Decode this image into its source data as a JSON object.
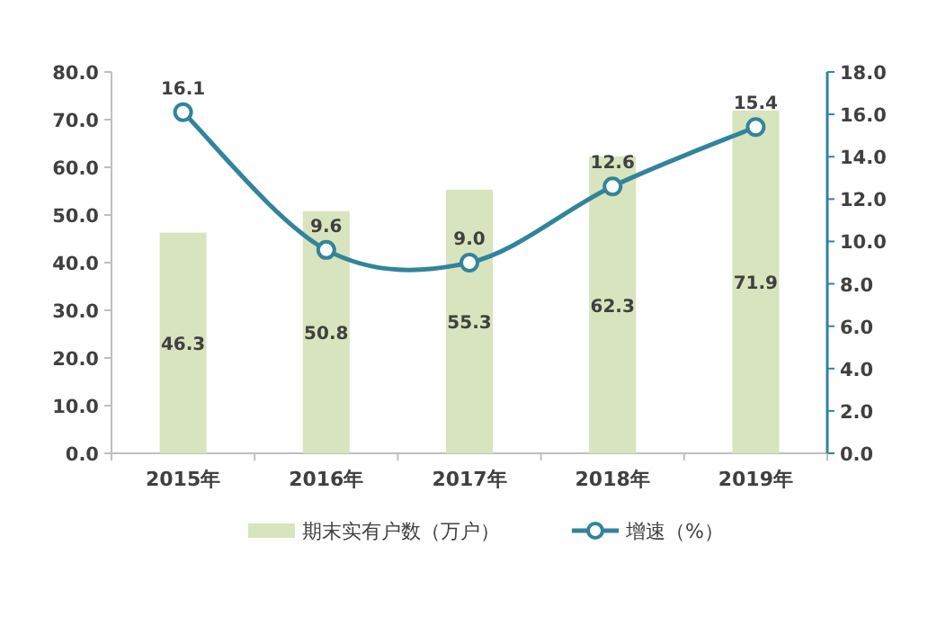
{
  "chart_data": {
    "type": "bar",
    "categories": [
      "2015年",
      "2016年",
      "2017年",
      "2018年",
      "2019年"
    ],
    "series": [
      {
        "name": "期末实有户数（万户）",
        "color": "#d7e4bd",
        "values": [
          46.3,
          50.8,
          55.3,
          62.3,
          71.9
        ],
        "value_labels": [
          "46.3",
          "50.8",
          "55.3",
          "62.3",
          "71.9"
        ]
      },
      {
        "name": "增速（%）",
        "type": "line",
        "axis": "y2",
        "color": "#31849b",
        "values": [
          16.1,
          9.6,
          9.0,
          12.6,
          15.4
        ],
        "value_labels": [
          "16.1",
          "9.6",
          "9.0",
          "12.6",
          "15.4"
        ]
      }
    ],
    "ylim": [
      0,
      80
    ],
    "yticks": [
      {
        "value": 0,
        "label": "0.0"
      },
      {
        "value": 10,
        "label": "10.0"
      },
      {
        "value": 20,
        "label": "20.0"
      },
      {
        "value": 30,
        "label": "30.0"
      },
      {
        "value": 40,
        "label": "40.0"
      },
      {
        "value": 50,
        "label": "50.0"
      },
      {
        "value": 60,
        "label": "60.0"
      },
      {
        "value": 70,
        "label": "70.0"
      },
      {
        "value": 80,
        "label": "80.0"
      }
    ],
    "y2lim": [
      0,
      18
    ],
    "y2ticks": [
      {
        "value": 0,
        "label": "0.0"
      },
      {
        "value": 2,
        "label": "2.0"
      },
      {
        "value": 4,
        "label": "4.0"
      },
      {
        "value": 6,
        "label": "6.0"
      },
      {
        "value": 8,
        "label": "8.0"
      },
      {
        "value": 10,
        "label": "10.0"
      },
      {
        "value": 12,
        "label": "12.0"
      },
      {
        "value": 14,
        "label": "14.0"
      },
      {
        "value": 16,
        "label": "16.0"
      },
      {
        "value": 18,
        "label": "18.0"
      }
    ],
    "marker": "circle",
    "legend": "bottom",
    "grid": false
  }
}
